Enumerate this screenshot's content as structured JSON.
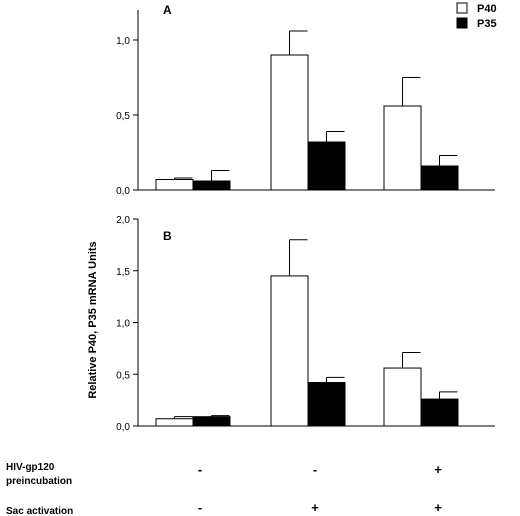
{
  "chart_data": {
    "type": "bar",
    "ylabel": "Relative P40, P35 mRNA Units",
    "legend": {
      "placement": "top-right",
      "entries": [
        {
          "label": "P40",
          "color": "#ffffff"
        },
        {
          "label": "P35",
          "color": "#000000"
        }
      ]
    },
    "panels": [
      {
        "label": "A",
        "ylim": [
          0,
          1.2
        ],
        "yticks": [
          0,
          0.5,
          1.0
        ],
        "ytick_labels": [
          "0,0",
          "0,5",
          "1,0"
        ],
        "series": [
          {
            "name": "P40",
            "values": [
              0.07,
              0.9,
              0.56
            ],
            "errors": [
              0.01,
              0.16,
              0.19
            ]
          },
          {
            "name": "P35",
            "values": [
              0.06,
              0.32,
              0.16
            ],
            "errors": [
              0.07,
              0.07,
              0.07
            ]
          }
        ]
      },
      {
        "label": "B",
        "ylim": [
          0,
          2.0
        ],
        "yticks": [
          0,
          0.5,
          1.0,
          1.5,
          2.0
        ],
        "ytick_labels": [
          "0,0",
          "0,5",
          "1,0",
          "1,5",
          "2,0"
        ],
        "series": [
          {
            "name": "P40",
            "values": [
              0.07,
              1.45,
              0.56
            ],
            "errors": [
              0.02,
              0.35,
              0.15
            ]
          },
          {
            "name": "P35",
            "values": [
              0.09,
              0.42,
              0.26
            ],
            "errors": [
              0.01,
              0.05,
              0.07
            ]
          }
        ]
      }
    ],
    "conditions": [
      {
        "label": [
          "HIV-gp120",
          "preincubation"
        ],
        "values": [
          "-",
          "-",
          "+"
        ]
      },
      {
        "label": [
          "Sac activation"
        ],
        "values": [
          "-",
          "+",
          "+"
        ]
      }
    ]
  }
}
